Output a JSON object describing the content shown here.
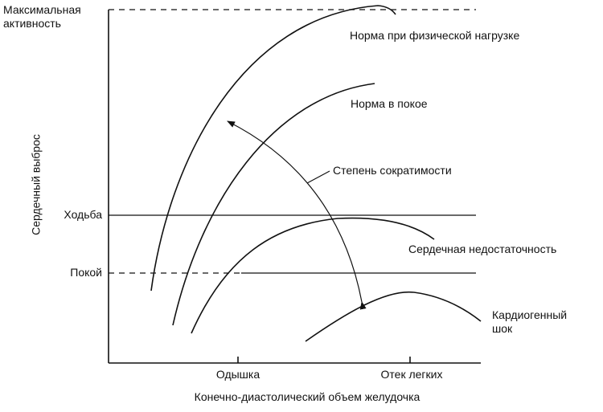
{
  "y_axis": {
    "label": "Сердечный выброс",
    "levels": [
      "Максимальная активность",
      "Ходьба",
      "Покой"
    ]
  },
  "x_axis": {
    "label": "Конечно-диастолический объем желудочка",
    "marks": [
      "Одышка",
      "Отек легких"
    ]
  },
  "curves": [
    "Норма при физической нагрузке",
    "Норма в покое",
    "Сердечная недостаточность",
    "Кардиогенный шок"
  ],
  "arrow_label": "Степень сократимости"
}
